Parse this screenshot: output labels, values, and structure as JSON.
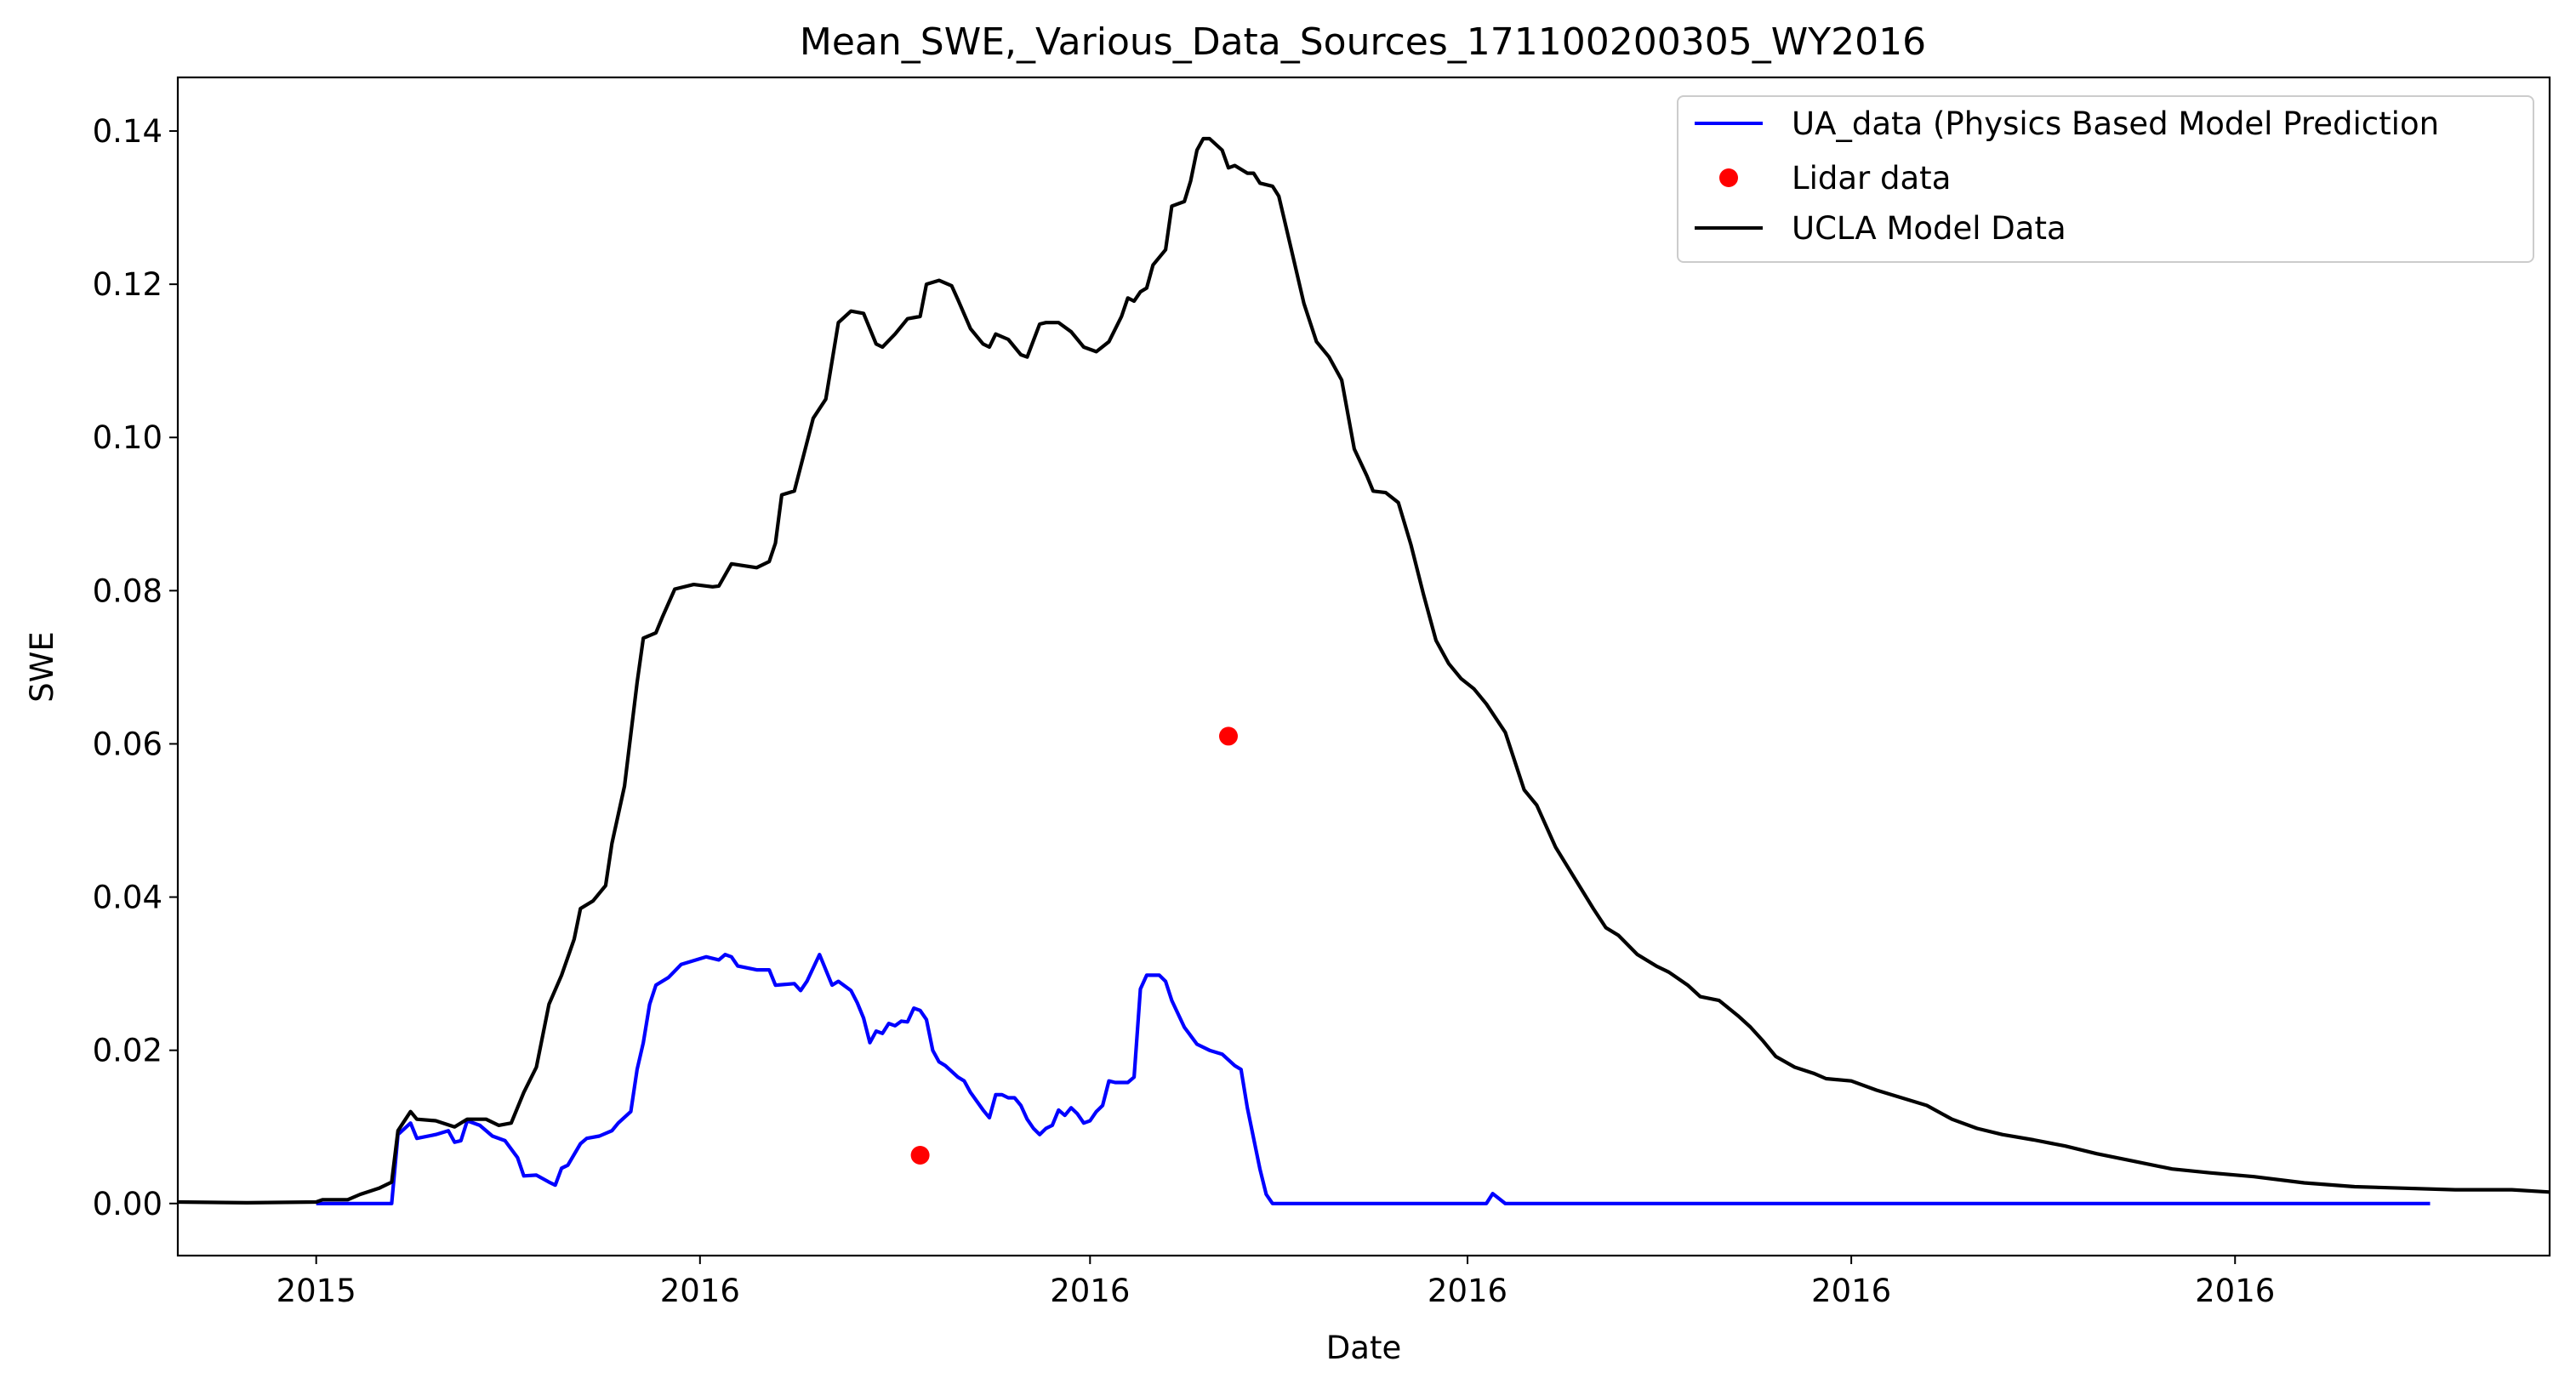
{
  "chart_data": {
    "type": "line",
    "title": "Mean_SWE,_Various_Data_Sources_171100200305_WY2016",
    "xlabel": "Date",
    "ylabel": "SWE",
    "xlim": [
      "2015-09-09",
      "2016-09-20"
    ],
    "ylim": [
      -0.0068,
      0.147
    ],
    "grid": false,
    "legend_position": "top-right",
    "x_tick_labels": [
      {
        "date": "2015-10-01",
        "label": "2015"
      },
      {
        "date": "2015-12-01",
        "label": "2016"
      },
      {
        "date": "2016-02-01",
        "label": "2016"
      },
      {
        "date": "2016-04-01",
        "label": "2016"
      },
      {
        "date": "2016-06-01",
        "label": "2016"
      },
      {
        "date": "2016-08-01",
        "label": "2016"
      }
    ],
    "y_ticks": [
      {
        "value": 0.0,
        "label": "0.00"
      },
      {
        "value": 0.02,
        "label": "0.02"
      },
      {
        "value": 0.04,
        "label": "0.04"
      },
      {
        "value": 0.06,
        "label": "0.06"
      },
      {
        "value": 0.08,
        "label": "0.08"
      },
      {
        "value": 0.1,
        "label": "0.10"
      },
      {
        "value": 0.12,
        "label": "0.12"
      },
      {
        "value": 0.14,
        "label": "0.14"
      }
    ],
    "series": [
      {
        "name": "UA_data (Physics Based Model Prediction",
        "kind": "line",
        "color": "#0000ff",
        "points": [
          [
            "2015-10-01",
            0.0
          ],
          [
            "2015-10-13",
            0.0
          ],
          [
            "2015-10-14",
            0.009
          ],
          [
            "2015-10-16",
            0.0105
          ],
          [
            "2015-10-17",
            0.0085
          ],
          [
            "2015-10-20",
            0.009
          ],
          [
            "2015-10-22",
            0.0095
          ],
          [
            "2015-10-23",
            0.008
          ],
          [
            "2015-10-24",
            0.0082
          ],
          [
            "2015-10-25",
            0.0108
          ],
          [
            "2015-10-27",
            0.0102
          ],
          [
            "2015-10-29",
            0.0088
          ],
          [
            "2015-10-31",
            0.0082
          ],
          [
            "2015-11-02",
            0.006
          ],
          [
            "2015-11-03",
            0.0036
          ],
          [
            "2015-11-05",
            0.0037
          ],
          [
            "2015-11-07",
            0.0028
          ],
          [
            "2015-11-08",
            0.0024
          ],
          [
            "2015-11-09",
            0.0046
          ],
          [
            "2015-11-10",
            0.005
          ],
          [
            "2015-11-12",
            0.0078
          ],
          [
            "2015-11-13",
            0.0085
          ],
          [
            "2015-11-15",
            0.0088
          ],
          [
            "2015-11-17",
            0.0095
          ],
          [
            "2015-11-18",
            0.0105
          ],
          [
            "2015-11-20",
            0.012
          ],
          [
            "2015-11-21",
            0.0175
          ],
          [
            "2015-11-22",
            0.021
          ],
          [
            "2015-11-23",
            0.026
          ],
          [
            "2015-11-24",
            0.0285
          ],
          [
            "2015-11-26",
            0.0295
          ],
          [
            "2015-11-28",
            0.0312
          ],
          [
            "2015-12-02",
            0.0322
          ],
          [
            "2015-12-04",
            0.0318
          ],
          [
            "2015-12-05",
            0.0325
          ],
          [
            "2015-12-06",
            0.0322
          ],
          [
            "2015-12-07",
            0.031
          ],
          [
            "2015-12-10",
            0.0305
          ],
          [
            "2015-12-12",
            0.0305
          ],
          [
            "2015-12-13",
            0.0285
          ],
          [
            "2015-12-16",
            0.0287
          ],
          [
            "2015-12-17",
            0.0278
          ],
          [
            "2015-12-18",
            0.029
          ],
          [
            "2015-12-20",
            0.0325
          ],
          [
            "2015-12-21",
            0.0305
          ],
          [
            "2015-12-22",
            0.0285
          ],
          [
            "2015-12-23",
            0.029
          ],
          [
            "2015-12-25",
            0.0278
          ],
          [
            "2015-12-26",
            0.0262
          ],
          [
            "2015-12-27",
            0.0242
          ],
          [
            "2015-12-28",
            0.021
          ],
          [
            "2015-12-29",
            0.0225
          ],
          [
            "2015-12-30",
            0.0222
          ],
          [
            "2015-12-31",
            0.0235
          ],
          [
            "2016-01-01",
            0.0232
          ],
          [
            "2016-01-02",
            0.0238
          ],
          [
            "2016-01-03",
            0.0237
          ],
          [
            "2016-01-04",
            0.0255
          ],
          [
            "2016-01-05",
            0.0252
          ],
          [
            "2016-01-06",
            0.024
          ],
          [
            "2016-01-07",
            0.02
          ],
          [
            "2016-01-08",
            0.0185
          ],
          [
            "2016-01-09",
            0.018
          ],
          [
            "2016-01-11",
            0.0165
          ],
          [
            "2016-01-12",
            0.016
          ],
          [
            "2016-01-13",
            0.0145
          ],
          [
            "2016-01-15",
            0.0122
          ],
          [
            "2016-01-16",
            0.0112
          ],
          [
            "2016-01-17",
            0.0142
          ],
          [
            "2016-01-18",
            0.0142
          ],
          [
            "2016-01-19",
            0.0138
          ],
          [
            "2016-01-20",
            0.0138
          ],
          [
            "2016-01-21",
            0.0128
          ],
          [
            "2016-01-22",
            0.011
          ],
          [
            "2016-01-23",
            0.0098
          ],
          [
            "2016-01-24",
            0.009
          ],
          [
            "2016-01-25",
            0.0098
          ],
          [
            "2016-01-26",
            0.0102
          ],
          [
            "2016-01-27",
            0.0122
          ],
          [
            "2016-01-28",
            0.0115
          ],
          [
            "2016-01-29",
            0.0125
          ],
          [
            "2016-01-30",
            0.0117
          ],
          [
            "2016-01-31",
            0.0105
          ],
          [
            "2016-02-01",
            0.0108
          ],
          [
            "2016-02-02",
            0.012
          ],
          [
            "2016-02-03",
            0.0128
          ],
          [
            "2016-02-04",
            0.016
          ],
          [
            "2016-02-05",
            0.0158
          ],
          [
            "2016-02-07",
            0.0158
          ],
          [
            "2016-02-08",
            0.0165
          ],
          [
            "2016-02-09",
            0.028
          ],
          [
            "2016-02-10",
            0.0298
          ],
          [
            "2016-02-12",
            0.0298
          ],
          [
            "2016-02-13",
            0.029
          ],
          [
            "2016-02-14",
            0.0265
          ],
          [
            "2016-02-16",
            0.023
          ],
          [
            "2016-02-18",
            0.0208
          ],
          [
            "2016-02-20",
            0.02
          ],
          [
            "2016-02-22",
            0.0195
          ],
          [
            "2016-02-24",
            0.018
          ],
          [
            "2016-02-25",
            0.0175
          ],
          [
            "2016-02-26",
            0.0125
          ],
          [
            "2016-02-28",
            0.0045
          ],
          [
            "2016-02-29",
            0.0012
          ],
          [
            "2016-03-01",
            0.0
          ],
          [
            "2016-04-04",
            0.0
          ],
          [
            "2016-04-05",
            0.0013
          ],
          [
            "2016-04-07",
            0.0
          ],
          [
            "2016-09-01",
            0.0
          ]
        ]
      },
      {
        "name": "Lidar data",
        "kind": "scatter",
        "color": "#ff0000",
        "points": [
          [
            "2016-01-05",
            0.0063
          ],
          [
            "2016-02-23",
            0.061
          ]
        ]
      },
      {
        "name": "UCLA Model Data",
        "kind": "line",
        "color": "#000000",
        "points": [
          [
            "2015-09-09",
            0.0002
          ],
          [
            "2015-09-20",
            0.0001
          ],
          [
            "2015-10-01",
            0.0002
          ],
          [
            "2015-10-02",
            0.0005
          ],
          [
            "2015-10-06",
            0.0005
          ],
          [
            "2015-10-08",
            0.0012
          ],
          [
            "2015-10-11",
            0.002
          ],
          [
            "2015-10-13",
            0.0028
          ],
          [
            "2015-10-14",
            0.0095
          ],
          [
            "2015-10-16",
            0.012
          ],
          [
            "2015-10-17",
            0.011
          ],
          [
            "2015-10-20",
            0.0108
          ],
          [
            "2015-10-23",
            0.01
          ],
          [
            "2015-10-25",
            0.011
          ],
          [
            "2015-10-28",
            0.011
          ],
          [
            "2015-10-30",
            0.0102
          ],
          [
            "2015-11-01",
            0.0105
          ],
          [
            "2015-11-03",
            0.0145
          ],
          [
            "2015-11-05",
            0.0178
          ],
          [
            "2015-11-07",
            0.026
          ],
          [
            "2015-11-09",
            0.0298
          ],
          [
            "2015-11-11",
            0.0345
          ],
          [
            "2015-11-12",
            0.0385
          ],
          [
            "2015-11-14",
            0.0395
          ],
          [
            "2015-11-16",
            0.0415
          ],
          [
            "2015-11-17",
            0.047
          ],
          [
            "2015-11-19",
            0.0545
          ],
          [
            "2015-11-21",
            0.068
          ],
          [
            "2015-11-22",
            0.0738
          ],
          [
            "2015-11-24",
            0.0745
          ],
          [
            "2015-11-25",
            0.0765
          ],
          [
            "2015-11-27",
            0.0802
          ],
          [
            "2015-11-30",
            0.0808
          ],
          [
            "2015-12-03",
            0.0805
          ],
          [
            "2015-12-04",
            0.0806
          ],
          [
            "2015-12-06",
            0.0835
          ],
          [
            "2015-12-10",
            0.083
          ],
          [
            "2015-12-12",
            0.0838
          ],
          [
            "2015-12-13",
            0.0862
          ],
          [
            "2015-12-14",
            0.0925
          ],
          [
            "2015-12-16",
            0.093
          ],
          [
            "2015-12-19",
            0.1025
          ],
          [
            "2015-12-21",
            0.105
          ],
          [
            "2015-12-23",
            0.115
          ],
          [
            "2015-12-25",
            0.1165
          ],
          [
            "2015-12-27",
            0.1162
          ],
          [
            "2015-12-29",
            0.1122
          ],
          [
            "2015-12-30",
            0.1118
          ],
          [
            "2016-01-01",
            0.1135
          ],
          [
            "2016-01-03",
            0.1155
          ],
          [
            "2016-01-05",
            0.1158
          ],
          [
            "2016-01-06",
            0.12
          ],
          [
            "2016-01-08",
            0.1205
          ],
          [
            "2016-01-10",
            0.1198
          ],
          [
            "2016-01-11",
            0.118
          ],
          [
            "2016-01-13",
            0.1142
          ],
          [
            "2016-01-15",
            0.1122
          ],
          [
            "2016-01-16",
            0.1118
          ],
          [
            "2016-01-17",
            0.1135
          ],
          [
            "2016-01-19",
            0.1128
          ],
          [
            "2016-01-21",
            0.1108
          ],
          [
            "2016-01-22",
            0.1105
          ],
          [
            "2016-01-24",
            0.1148
          ],
          [
            "2016-01-25",
            0.115
          ],
          [
            "2016-01-27",
            0.115
          ],
          [
            "2016-01-29",
            0.1138
          ],
          [
            "2016-01-31",
            0.1118
          ],
          [
            "2016-02-02",
            0.1112
          ],
          [
            "2016-02-04",
            0.1125
          ],
          [
            "2016-02-06",
            0.1158
          ],
          [
            "2016-02-07",
            0.1182
          ],
          [
            "2016-02-08",
            0.1178
          ],
          [
            "2016-02-09",
            0.119
          ],
          [
            "2016-02-10",
            0.1195
          ],
          [
            "2016-02-11",
            0.1225
          ],
          [
            "2016-02-13",
            0.1245
          ],
          [
            "2016-02-14",
            0.1302
          ],
          [
            "2016-02-16",
            0.1308
          ],
          [
            "2016-02-17",
            0.1335
          ],
          [
            "2016-02-18",
            0.1375
          ],
          [
            "2016-02-19",
            0.139
          ],
          [
            "2016-02-20",
            0.139
          ],
          [
            "2016-02-22",
            0.1375
          ],
          [
            "2016-02-23",
            0.1352
          ],
          [
            "2016-02-24",
            0.1355
          ],
          [
            "2016-02-25",
            0.135
          ],
          [
            "2016-02-26",
            0.1345
          ],
          [
            "2016-02-27",
            0.1345
          ],
          [
            "2016-02-28",
            0.1332
          ],
          [
            "2016-03-01",
            0.1328
          ],
          [
            "2016-03-02",
            0.1315
          ],
          [
            "2016-03-04",
            0.1245
          ],
          [
            "2016-03-06",
            0.1175
          ],
          [
            "2016-03-08",
            0.1125
          ],
          [
            "2016-03-10",
            0.1105
          ],
          [
            "2016-03-12",
            0.1075
          ],
          [
            "2016-03-14",
            0.0985
          ],
          [
            "2016-03-16",
            0.095
          ],
          [
            "2016-03-17",
            0.093
          ],
          [
            "2016-03-19",
            0.0928
          ],
          [
            "2016-03-21",
            0.0915
          ],
          [
            "2016-03-23",
            0.086
          ],
          [
            "2016-03-25",
            0.0795
          ],
          [
            "2016-03-27",
            0.0735
          ],
          [
            "2016-03-29",
            0.0705
          ],
          [
            "2016-03-31",
            0.0685
          ],
          [
            "2016-04-02",
            0.0672
          ],
          [
            "2016-04-04",
            0.0652
          ],
          [
            "2016-04-07",
            0.0615
          ],
          [
            "2016-04-10",
            0.054
          ],
          [
            "2016-04-12",
            0.052
          ],
          [
            "2016-04-15",
            0.0465
          ],
          [
            "2016-04-18",
            0.0425
          ],
          [
            "2016-04-21",
            0.0385
          ],
          [
            "2016-04-23",
            0.036
          ],
          [
            "2016-04-25",
            0.035
          ],
          [
            "2016-04-28",
            0.0325
          ],
          [
            "2016-05-01",
            0.031
          ],
          [
            "2016-05-03",
            0.0302
          ],
          [
            "2016-05-06",
            0.0285
          ],
          [
            "2016-05-08",
            0.027
          ],
          [
            "2016-05-11",
            0.0265
          ],
          [
            "2016-05-14",
            0.0245
          ],
          [
            "2016-05-16",
            0.023
          ],
          [
            "2016-05-18",
            0.0212
          ],
          [
            "2016-05-20",
            0.0192
          ],
          [
            "2016-05-23",
            0.0178
          ],
          [
            "2016-05-26",
            0.017
          ],
          [
            "2016-05-28",
            0.0163
          ],
          [
            "2016-06-01",
            0.016
          ],
          [
            "2016-06-05",
            0.0148
          ],
          [
            "2016-06-09",
            0.0138
          ],
          [
            "2016-06-13",
            0.0128
          ],
          [
            "2016-06-17",
            0.011
          ],
          [
            "2016-06-21",
            0.0098
          ],
          [
            "2016-06-25",
            0.009
          ],
          [
            "2016-06-30",
            0.0083
          ],
          [
            "2016-07-05",
            0.0075
          ],
          [
            "2016-07-10",
            0.0065
          ],
          [
            "2016-07-16",
            0.0055
          ],
          [
            "2016-07-22",
            0.0045
          ],
          [
            "2016-07-28",
            0.004
          ],
          [
            "2016-08-04",
            0.0035
          ],
          [
            "2016-08-12",
            0.0027
          ],
          [
            "2016-08-20",
            0.0022
          ],
          [
            "2016-08-28",
            0.002
          ],
          [
            "2016-09-05",
            0.0018
          ],
          [
            "2016-09-14",
            0.0018
          ],
          [
            "2016-09-20",
            0.0015
          ]
        ]
      }
    ]
  }
}
